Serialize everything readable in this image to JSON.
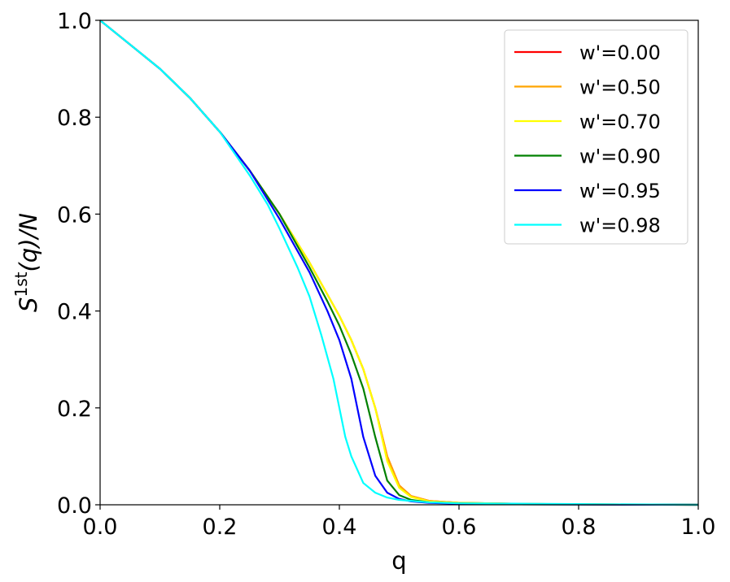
{
  "chart_data": {
    "type": "line",
    "xlabel": "q",
    "ylabel": "S",
    "ylabel_sup": "1st",
    "ylabel_tail": "(q)/N",
    "xlim": [
      0.0,
      1.0
    ],
    "ylim": [
      0.0,
      1.0
    ],
    "xticks": [
      "0.0",
      "0.2",
      "0.4",
      "0.6",
      "0.8",
      "1.0"
    ],
    "yticks": [
      "0.0",
      "0.2",
      "0.4",
      "0.6",
      "0.8",
      "1.0"
    ],
    "grid": false,
    "legend_position": "top-right",
    "series": [
      {
        "name": "w'=0.00",
        "color": "#ff0000",
        "x": [
          0,
          0.05,
          0.1,
          0.15,
          0.2,
          0.25,
          0.3,
          0.35,
          0.4,
          0.42,
          0.44,
          0.46,
          0.48,
          0.5,
          0.52,
          0.55,
          0.6,
          0.7,
          0.8,
          1.0
        ],
        "y": [
          1.0,
          0.95,
          0.9,
          0.84,
          0.77,
          0.69,
          0.6,
          0.5,
          0.39,
          0.34,
          0.28,
          0.2,
          0.1,
          0.04,
          0.018,
          0.008,
          0.004,
          0.002,
          0.001,
          0.0
        ]
      },
      {
        "name": "w'=0.50",
        "color": "#ffa500",
        "x": [
          0,
          0.05,
          0.1,
          0.15,
          0.2,
          0.25,
          0.3,
          0.35,
          0.4,
          0.42,
          0.44,
          0.46,
          0.48,
          0.5,
          0.52,
          0.55,
          0.6,
          0.7,
          0.8,
          1.0
        ],
        "y": [
          1.0,
          0.95,
          0.9,
          0.84,
          0.77,
          0.69,
          0.6,
          0.5,
          0.39,
          0.34,
          0.28,
          0.2,
          0.1,
          0.04,
          0.018,
          0.008,
          0.004,
          0.002,
          0.001,
          0.0
        ]
      },
      {
        "name": "w'=0.70",
        "color": "#ffff00",
        "x": [
          0,
          0.05,
          0.1,
          0.15,
          0.2,
          0.25,
          0.3,
          0.35,
          0.4,
          0.42,
          0.44,
          0.46,
          0.48,
          0.5,
          0.52,
          0.55,
          0.6,
          0.7,
          0.8,
          1.0
        ],
        "y": [
          1.0,
          0.95,
          0.9,
          0.84,
          0.77,
          0.69,
          0.6,
          0.5,
          0.39,
          0.34,
          0.28,
          0.2,
          0.09,
          0.035,
          0.016,
          0.007,
          0.004,
          0.002,
          0.001,
          0.0
        ]
      },
      {
        "name": "w'=0.90",
        "color": "#008000",
        "x": [
          0,
          0.05,
          0.1,
          0.15,
          0.2,
          0.25,
          0.3,
          0.35,
          0.38,
          0.4,
          0.42,
          0.44,
          0.46,
          0.48,
          0.5,
          0.52,
          0.55,
          0.6,
          0.7,
          1.0
        ],
        "y": [
          1.0,
          0.95,
          0.9,
          0.84,
          0.77,
          0.69,
          0.6,
          0.49,
          0.42,
          0.37,
          0.31,
          0.24,
          0.14,
          0.05,
          0.02,
          0.01,
          0.005,
          0.003,
          0.001,
          0.0
        ]
      },
      {
        "name": "w'=0.95",
        "color": "#0000ff",
        "x": [
          0,
          0.05,
          0.1,
          0.15,
          0.2,
          0.25,
          0.3,
          0.35,
          0.38,
          0.4,
          0.42,
          0.44,
          0.46,
          0.48,
          0.5,
          0.52,
          0.55,
          0.6,
          0.7,
          1.0
        ],
        "y": [
          1.0,
          0.95,
          0.9,
          0.84,
          0.77,
          0.69,
          0.59,
          0.48,
          0.4,
          0.34,
          0.26,
          0.14,
          0.06,
          0.025,
          0.012,
          0.007,
          0.004,
          0.002,
          0.001,
          0.0
        ]
      },
      {
        "name": "w'=0.98",
        "color": "#00ffff",
        "x": [
          0,
          0.05,
          0.1,
          0.15,
          0.2,
          0.25,
          0.28,
          0.3,
          0.33,
          0.35,
          0.37,
          0.39,
          0.4,
          0.41,
          0.42,
          0.44,
          0.46,
          0.48,
          0.5,
          0.55,
          0.6,
          1.0
        ],
        "y": [
          1.0,
          0.95,
          0.9,
          0.84,
          0.77,
          0.68,
          0.62,
          0.57,
          0.49,
          0.43,
          0.35,
          0.26,
          0.2,
          0.14,
          0.1,
          0.045,
          0.025,
          0.015,
          0.01,
          0.005,
          0.003,
          0.0
        ]
      }
    ]
  }
}
